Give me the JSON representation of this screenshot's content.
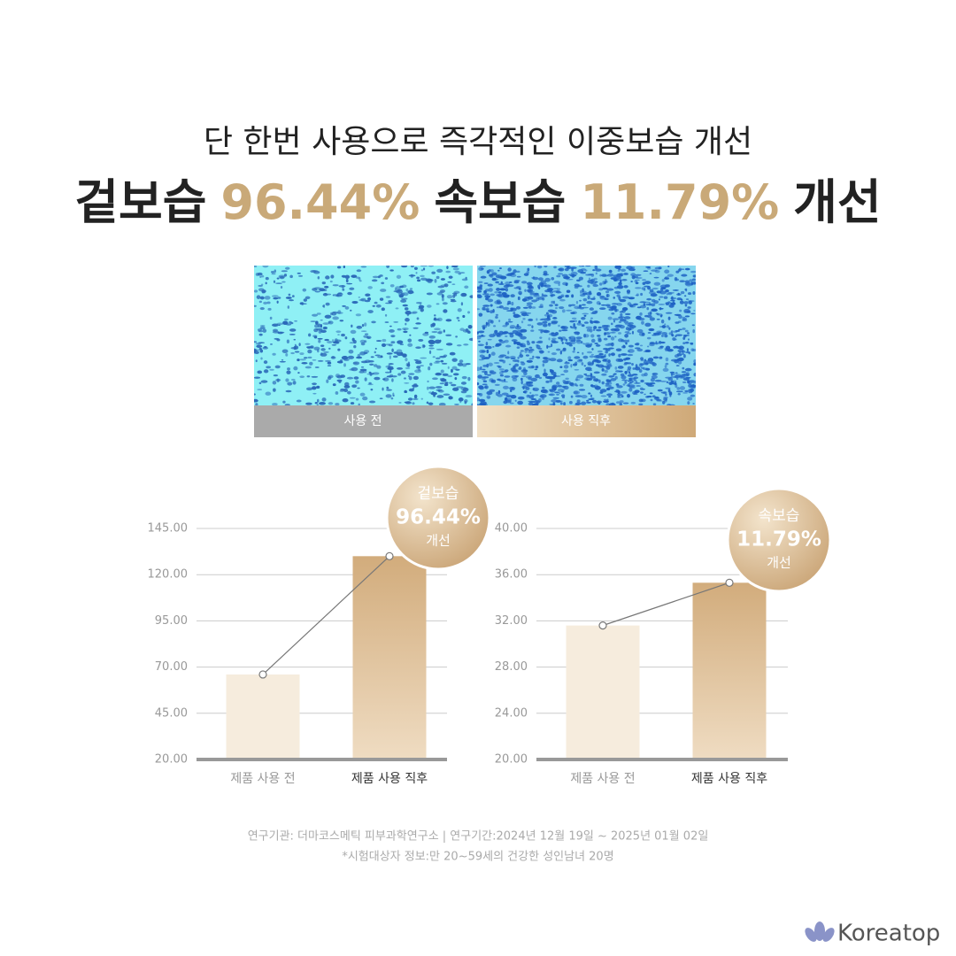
{
  "headline": {
    "line1": "단 한번 사용으로 즉각적인 이중보습 개선",
    "line2": [
      "겉보습",
      "96.44%",
      "속보습",
      "11.79%",
      "개선"
    ]
  },
  "images": [
    {
      "label": "사용 전"
    },
    {
      "label": "사용 직후"
    }
  ],
  "chart_data": [
    {
      "type": "bar",
      "categories": [
        "제품 사용 전",
        "제품 사용 직후"
      ],
      "values": [
        66,
        130
      ],
      "colors": [
        "#f6ecdd",
        "#d4b184"
      ],
      "ylim": [
        20,
        145
      ],
      "yticks": [
        {
          "value": 20,
          "label": "20.00"
        },
        {
          "value": 45,
          "label": "45.00"
        },
        {
          "value": 70,
          "label": "70.00"
        },
        {
          "value": 95,
          "label": "95.00"
        },
        {
          "value": 120,
          "label": "120.00"
        },
        {
          "value": 145,
          "label": "145.00"
        }
      ],
      "grid": true,
      "annotation": [
        "겉보습",
        "96.44%",
        "개선"
      ]
    },
    {
      "type": "bar",
      "categories": [
        "제품 사용 전",
        "제품 사용 직후"
      ],
      "values": [
        31.6,
        35.3
      ],
      "colors": [
        "#f6ecdd",
        "#d4b184"
      ],
      "ylim": [
        20,
        40
      ],
      "yticks": [
        {
          "value": 20,
          "label": "20.00"
        },
        {
          "value": 24,
          "label": "24.00"
        },
        {
          "value": 28,
          "label": "28.00"
        },
        {
          "value": 32,
          "label": "32.00"
        },
        {
          "value": 36,
          "label": "36.00"
        },
        {
          "value": 40,
          "label": "40.00"
        }
      ],
      "grid": true,
      "annotation": [
        "속보습",
        "11.79%",
        "개선"
      ]
    }
  ],
  "footer": {
    "line1": "연구기관: 더마코스메틱 피부과학연구소 | 연구기간:2024년 12월 19일 ~ 2025년 01월 02일",
    "line2": "*시험대상자 정보:만 20~59세의 건강한 성인남녀 20명"
  },
  "logo": "Koreatop"
}
